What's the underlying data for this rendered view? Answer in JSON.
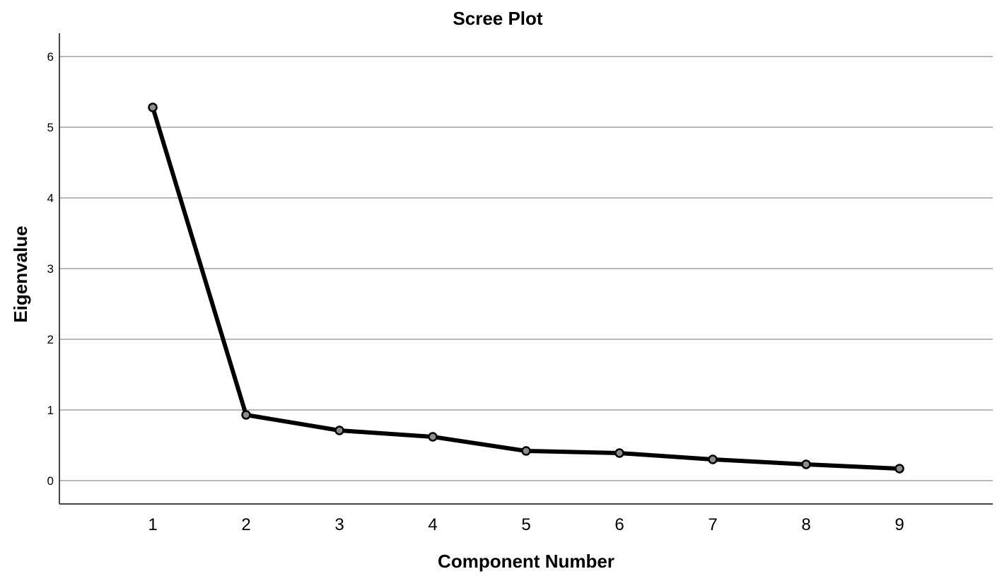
{
  "chart_data": {
    "type": "line",
    "title": "Scree Plot",
    "xlabel": "Component Number",
    "ylabel": "Eigenvalue",
    "x": [
      1,
      2,
      3,
      4,
      5,
      6,
      7,
      8,
      9
    ],
    "y": [
      5.28,
      0.93,
      0.71,
      0.62,
      0.42,
      0.39,
      0.3,
      0.23,
      0.17
    ],
    "y_ticks": [
      0,
      1,
      2,
      3,
      4,
      5,
      6
    ],
    "ylim": [
      -0.33,
      6.33
    ],
    "xlim": [
      0,
      10
    ],
    "grid": "horizontal",
    "legend": "none",
    "colors": {
      "line": "#000000",
      "marker_fill": "#8c8c8c",
      "grid": "#b9b9b9"
    }
  }
}
